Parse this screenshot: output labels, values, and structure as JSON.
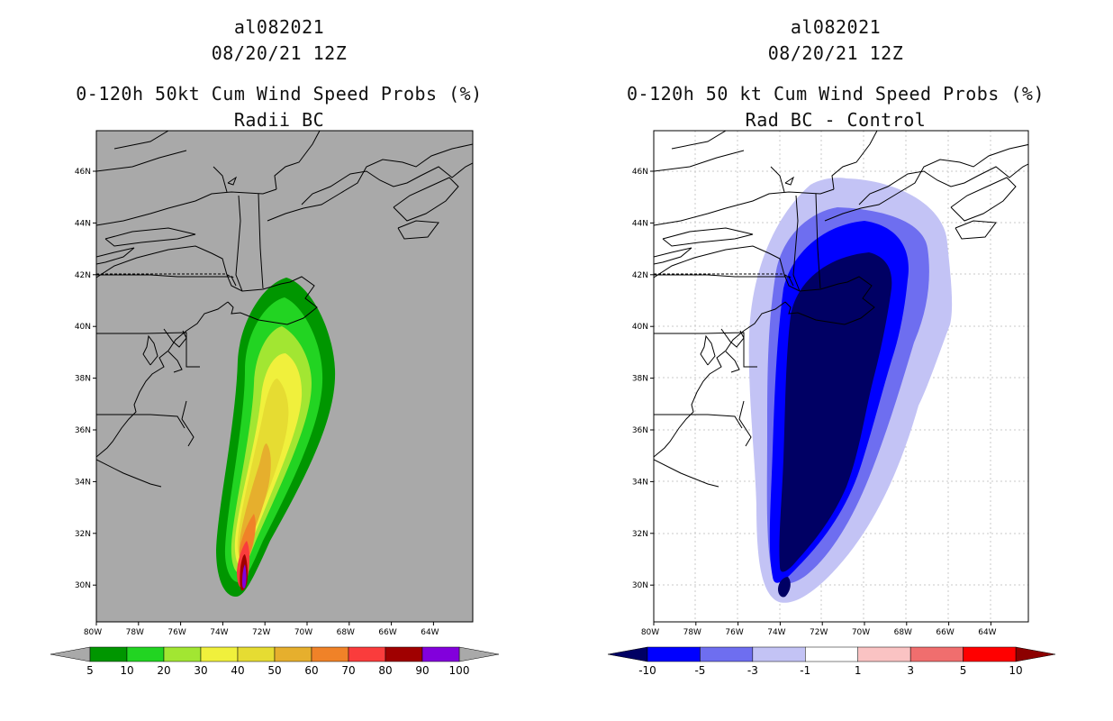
{
  "left_panel": {
    "storm_id": "al082021",
    "datetime": "08/20/21 12Z",
    "product": "0-120h 50kt Cum Wind Speed Probs (%)",
    "subtitle": "Radii BC",
    "background_color": "#a9a9a9"
  },
  "right_panel": {
    "storm_id": "al082021",
    "datetime": "08/20/21 12Z",
    "product": "0-120h 50 kt Cum Wind Speed Probs (%)",
    "subtitle": "Rad BC - Control",
    "background_color": "#ffffff"
  },
  "axes": {
    "lat_labels": [
      "46N",
      "44N",
      "42N",
      "40N",
      "38N",
      "36N",
      "34N",
      "32N",
      "30N"
    ],
    "lon_labels": [
      "80W",
      "78W",
      "76W",
      "74W",
      "72W",
      "70W",
      "68W",
      "66W",
      "64W"
    ]
  },
  "colorbar_left": {
    "labels": [
      "5",
      "10",
      "20",
      "30",
      "40",
      "50",
      "60",
      "70",
      "80",
      "90",
      "100"
    ],
    "colors": [
      "#009600",
      "#22d422",
      "#a2e632",
      "#f0f03c",
      "#e6dc32",
      "#e6af2d",
      "#f08228",
      "#fa3c3c",
      "#a00000",
      "#8200dc"
    ],
    "end_color": "#a9a9a9"
  },
  "colorbar_right": {
    "labels": [
      "-10",
      "-5",
      "-3",
      "-1",
      "1",
      "3",
      "5",
      "10"
    ],
    "colors": [
      "#0000ff",
      "#6e6ef0",
      "#c3c3f5",
      "#ffffff",
      "#fac3c3",
      "#f06e6e",
      "#ff0000"
    ],
    "low_end_color": "#000064",
    "high_end_color": "#8c0000"
  }
}
